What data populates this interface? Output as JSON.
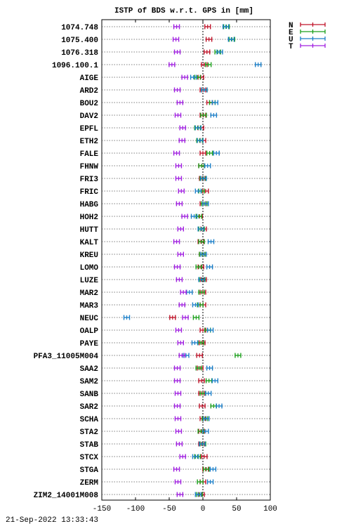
{
  "chart_data": {
    "type": "scatter",
    "title": "ISTP of BDS w.r.t. GPS in [mm]",
    "xlim": [
      -150,
      100
    ],
    "x_ticks": [
      "-150",
      "-100",
      "-50",
      "0",
      "50",
      "100"
    ],
    "grid": true,
    "legend": "top-right",
    "stations": [
      "1074.748",
      "1075.400",
      "1076.318",
      "1096.100.1",
      "AIGE",
      "ARD2",
      "BOU2",
      "DAV2",
      "EPFL",
      "ETH2",
      "FALE",
      "FHNW",
      "FRI3",
      "FRIC",
      "HABG",
      "HOH2",
      "HUTT",
      "KALT",
      "KREU",
      "LOMO",
      "LUZE",
      "MAR2",
      "MAR3",
      "NEUC",
      "OALP",
      "PAYE",
      "PFA3_11005M004",
      "SAA2",
      "SAM2",
      "SANB",
      "SAR2",
      "SCHA",
      "STA2",
      "STAB",
      "STCX",
      "STGA",
      "ZERM",
      "ZIM2_14001M008"
    ],
    "series": [
      {
        "name": "N",
        "color": "#c0142a",
        "values": [
          7,
          9,
          6,
          2,
          -3,
          0,
          10,
          0,
          -3,
          0,
          0,
          -2,
          -1,
          4,
          0,
          -5,
          1,
          -3,
          -1,
          -3,
          1,
          0,
          0,
          -45,
          0,
          -1,
          -5,
          -4,
          -2,
          -2,
          -1,
          0,
          -2,
          -2,
          2,
          4,
          0,
          -2
        ]
      },
      {
        "name": "E",
        "color": "#1ca01c",
        "values": [
          35,
          43,
          22,
          8,
          -8,
          2,
          14,
          1,
          -8,
          -5,
          10,
          -2,
          0,
          -2,
          2,
          -6,
          -2,
          -2,
          -1,
          -6,
          -1,
          -2,
          -4,
          -10,
          7,
          -3,
          52,
          -6,
          9,
          0,
          16,
          3,
          -3,
          0,
          -8,
          5,
          -4,
          -5
        ]
      },
      {
        "name": "U",
        "color": "#1c7fc8",
        "values": [
          34,
          42,
          25,
          82,
          -14,
          2,
          18,
          16,
          -7,
          -4,
          20,
          7,
          1,
          -7,
          4,
          -13,
          -3,
          12,
          1,
          10,
          -2,
          -20,
          -11,
          -113,
          11,
          -12,
          -25,
          10,
          18,
          8,
          24,
          5,
          4,
          -1,
          -11,
          15,
          11,
          -7
        ]
      },
      {
        "name": "T",
        "color": "#a020e0",
        "values": [
          -39,
          -40,
          -38,
          -46,
          -27,
          -38,
          -34,
          -37,
          -30,
          -31,
          -39,
          -36,
          -36,
          -32,
          -35,
          -27,
          -33,
          -39,
          -33,
          -38,
          -35,
          -29,
          -31,
          -26,
          -36,
          -33,
          -31,
          -38,
          -38,
          -37,
          -38,
          -37,
          -36,
          -35,
          -30,
          -39,
          -37,
          -34
        ]
      }
    ]
  },
  "footer": {
    "timestamp": "21-Sep-2022 13:33:43"
  }
}
